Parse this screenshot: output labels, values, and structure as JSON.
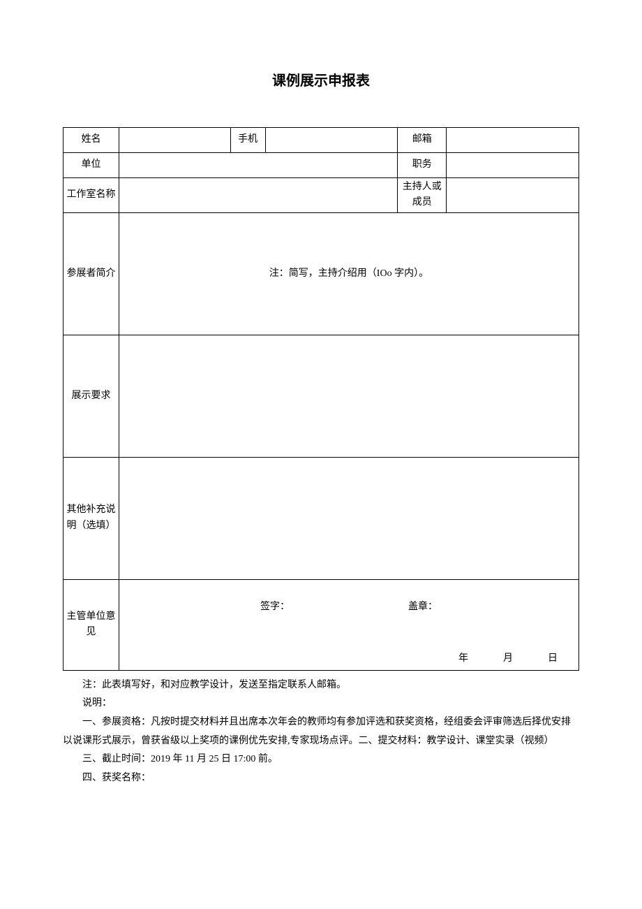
{
  "title": "课例展示申报表",
  "labels": {
    "name": "姓名",
    "phone": "手机",
    "email": "邮箱",
    "unit": "单位",
    "position": "职务",
    "studio": "工作室名称",
    "role": "主持人或成员",
    "intro": "参展者简介",
    "requirement": "展示要求",
    "other": "其他补充说明（选填）",
    "opinion": "主管单位意见"
  },
  "intro_note": "注：简写，主持介绍用（IOo 字内）。",
  "opinion": {
    "sign": "签字：",
    "seal": "盖章：",
    "year": "年",
    "month": "月",
    "day": "日"
  },
  "notes": {
    "line1": "注：此表填写好，和对应教学设计，发送至指定联系人邮箱。",
    "line2": "说明：",
    "line3": "一、参展资格：凡按时提交材料并且出席本次年会的教师均有参加评选和获奖资格，经组委会评审筛选后择优安排以说课形式展示，曾获省级以上奖项的课例优先安排,专家现场点评。二、提交材料：教学设计、课堂实录（视频）",
    "line4": "三、截止时间：2019 年 11 月 25 日 17:00 前。",
    "line5": "四、获奖名称："
  },
  "colors": {
    "text": "#000000",
    "background": "#ffffff",
    "border": "#000000"
  }
}
